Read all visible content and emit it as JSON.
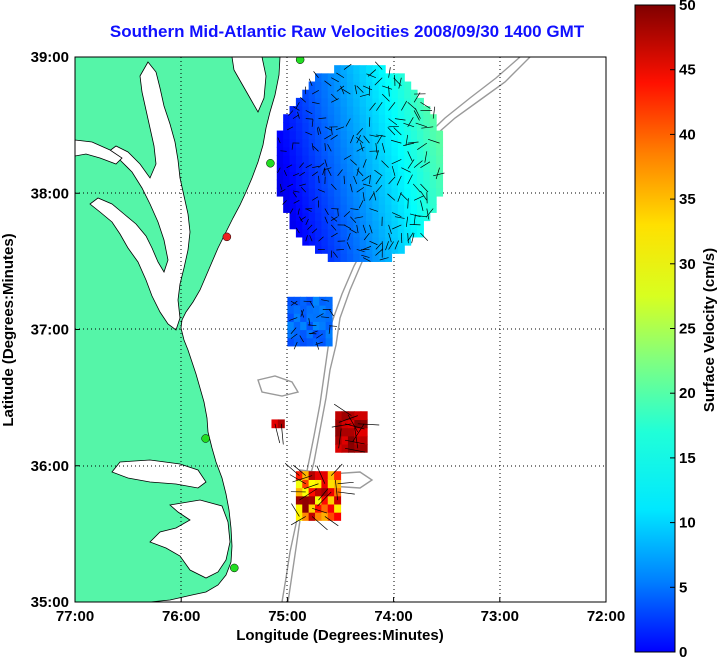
{
  "title": "Southern Mid-Atlantic Raw Velocities 2008/09/30 1400 GMT",
  "colors": {
    "land": "#55f5a8",
    "ocean": "#ffffff",
    "title": "#1010ff",
    "bathymetry": "#9a9a9a",
    "grid": "#000000",
    "station": "#22dd22",
    "station_alert": "#ee2222"
  },
  "chart_data": {
    "type": "heatmap",
    "title": "Southern Mid-Atlantic Raw Velocities 2008/09/30 1400 GMT",
    "xlabel": "Longitude (Degrees:Minutes)",
    "ylabel": "Latitude (Degrees:Minutes)",
    "xlim": [
      -77,
      -72
    ],
    "ylim": [
      35,
      39
    ],
    "x_ticks": [
      {
        "value": -77,
        "label": "77:00"
      },
      {
        "value": -76,
        "label": "76:00"
      },
      {
        "value": -75,
        "label": "75:00"
      },
      {
        "value": -74,
        "label": "74:00"
      },
      {
        "value": -73,
        "label": "73:00"
      },
      {
        "value": -72,
        "label": "72:00"
      }
    ],
    "y_ticks": [
      {
        "value": 39,
        "label": "39:00"
      },
      {
        "value": 38,
        "label": "38:00"
      },
      {
        "value": 37,
        "label": "37:00"
      },
      {
        "value": 36,
        "label": "36:00"
      },
      {
        "value": 35,
        "label": "35:00"
      }
    ],
    "grid": "dotted",
    "colorbar": {
      "label": "Surface Velocity (cm/s)",
      "min": 0,
      "max": 50,
      "ticks": [
        0,
        5,
        10,
        15,
        20,
        25,
        30,
        35,
        40,
        45,
        50
      ],
      "tick_labels": [
        "0",
        "5",
        "10",
        "15",
        "20",
        "25",
        "30",
        "35",
        "40",
        "45",
        "50"
      ],
      "colormap": "jet",
      "placement": "right"
    },
    "velocity_regions": [
      {
        "name": "north",
        "lon_range": [
          -75.1,
          -73.55
        ],
        "lat_range": [
          37.5,
          38.93
        ],
        "speed_range_cm_s": [
          3,
          25
        ]
      },
      {
        "name": "central",
        "lon_range": [
          -75.0,
          -74.62
        ],
        "lat_range": [
          36.88,
          37.23
        ],
        "speed_range_cm_s": [
          10,
          13
        ]
      },
      {
        "name": "south_a",
        "lon_range": [
          -74.55,
          -74.25
        ],
        "lat_range": [
          36.1,
          36.38
        ],
        "speed_range_cm_s": [
          45,
          50
        ]
      },
      {
        "name": "south_b",
        "lon_range": [
          -74.92,
          -74.55
        ],
        "lat_range": [
          35.6,
          35.95
        ],
        "speed_range_cm_s": [
          30,
          50
        ]
      },
      {
        "name": "isolated",
        "lon_range": [
          -75.15,
          -75.05
        ],
        "lat_range": [
          36.28,
          36.33
        ],
        "speed_range_cm_s": [
          45,
          48
        ]
      }
    ],
    "stations": [
      {
        "lon": -74.88,
        "lat": 38.98,
        "status": "ok"
      },
      {
        "lon": -75.16,
        "lat": 38.22,
        "status": "ok"
      },
      {
        "lon": -75.57,
        "lat": 37.68,
        "status": "alert"
      },
      {
        "lon": -75.77,
        "lat": 36.2,
        "status": "ok"
      },
      {
        "lon": -75.5,
        "lat": 35.25,
        "status": "ok"
      }
    ]
  }
}
